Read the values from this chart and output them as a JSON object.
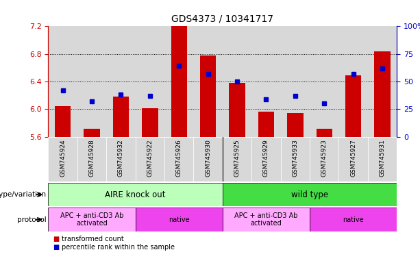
{
  "title": "GDS4373 / 10341717",
  "samples": [
    "GSM745924",
    "GSM745928",
    "GSM745932",
    "GSM745922",
    "GSM745926",
    "GSM745930",
    "GSM745925",
    "GSM745929",
    "GSM745933",
    "GSM745923",
    "GSM745927",
    "GSM745931"
  ],
  "transformed_count": [
    6.04,
    5.72,
    6.18,
    6.01,
    7.2,
    6.78,
    6.38,
    5.96,
    5.94,
    5.72,
    6.49,
    6.84
  ],
  "percentile_rank": [
    42,
    32,
    38,
    37,
    64,
    57,
    50,
    34,
    37,
    30,
    57,
    62
  ],
  "ylim_left": [
    5.6,
    7.2
  ],
  "ylim_right": [
    0,
    100
  ],
  "yticks_left": [
    5.6,
    6.0,
    6.4,
    6.8,
    7.2
  ],
  "yticks_right": [
    0,
    25,
    50,
    75,
    100
  ],
  "ytick_labels_right": [
    "0",
    "25",
    "50",
    "75",
    "100%"
  ],
  "bar_color": "#cc0000",
  "dot_color": "#0000cc",
  "bar_bottom": 5.6,
  "hgrid_vals": [
    6.0,
    6.4,
    6.8
  ],
  "genotype_groups": [
    {
      "label": "AIRE knock out",
      "start": 0,
      "end": 6,
      "color": "#bbffbb"
    },
    {
      "label": "wild type",
      "start": 6,
      "end": 12,
      "color": "#44dd44"
    }
  ],
  "protocol_groups": [
    {
      "label": "APC + anti-CD3 Ab\nactivated",
      "start": 0,
      "end": 3,
      "color": "#ffaaff"
    },
    {
      "label": "native",
      "start": 3,
      "end": 6,
      "color": "#ee44ee"
    },
    {
      "label": "APC + anti-CD3 Ab\nactivated",
      "start": 6,
      "end": 9,
      "color": "#ffaaff"
    },
    {
      "label": "native",
      "start": 9,
      "end": 12,
      "color": "#ee44ee"
    }
  ],
  "legend_items": [
    {
      "color": "#cc0000",
      "label": "transformed count"
    },
    {
      "color": "#0000cc",
      "label": "percentile rank within the sample"
    }
  ],
  "bg_color": "#ffffff",
  "tick_label_color_left": "#cc0000",
  "tick_label_color_right": "#0000cc",
  "title_fontsize": 10,
  "tick_fontsize": 8,
  "sample_label_fontsize": 6.5,
  "col_bg_color": "#d8d8d8",
  "genotype_label": "genotype/variation",
  "protocol_label": "protocol"
}
